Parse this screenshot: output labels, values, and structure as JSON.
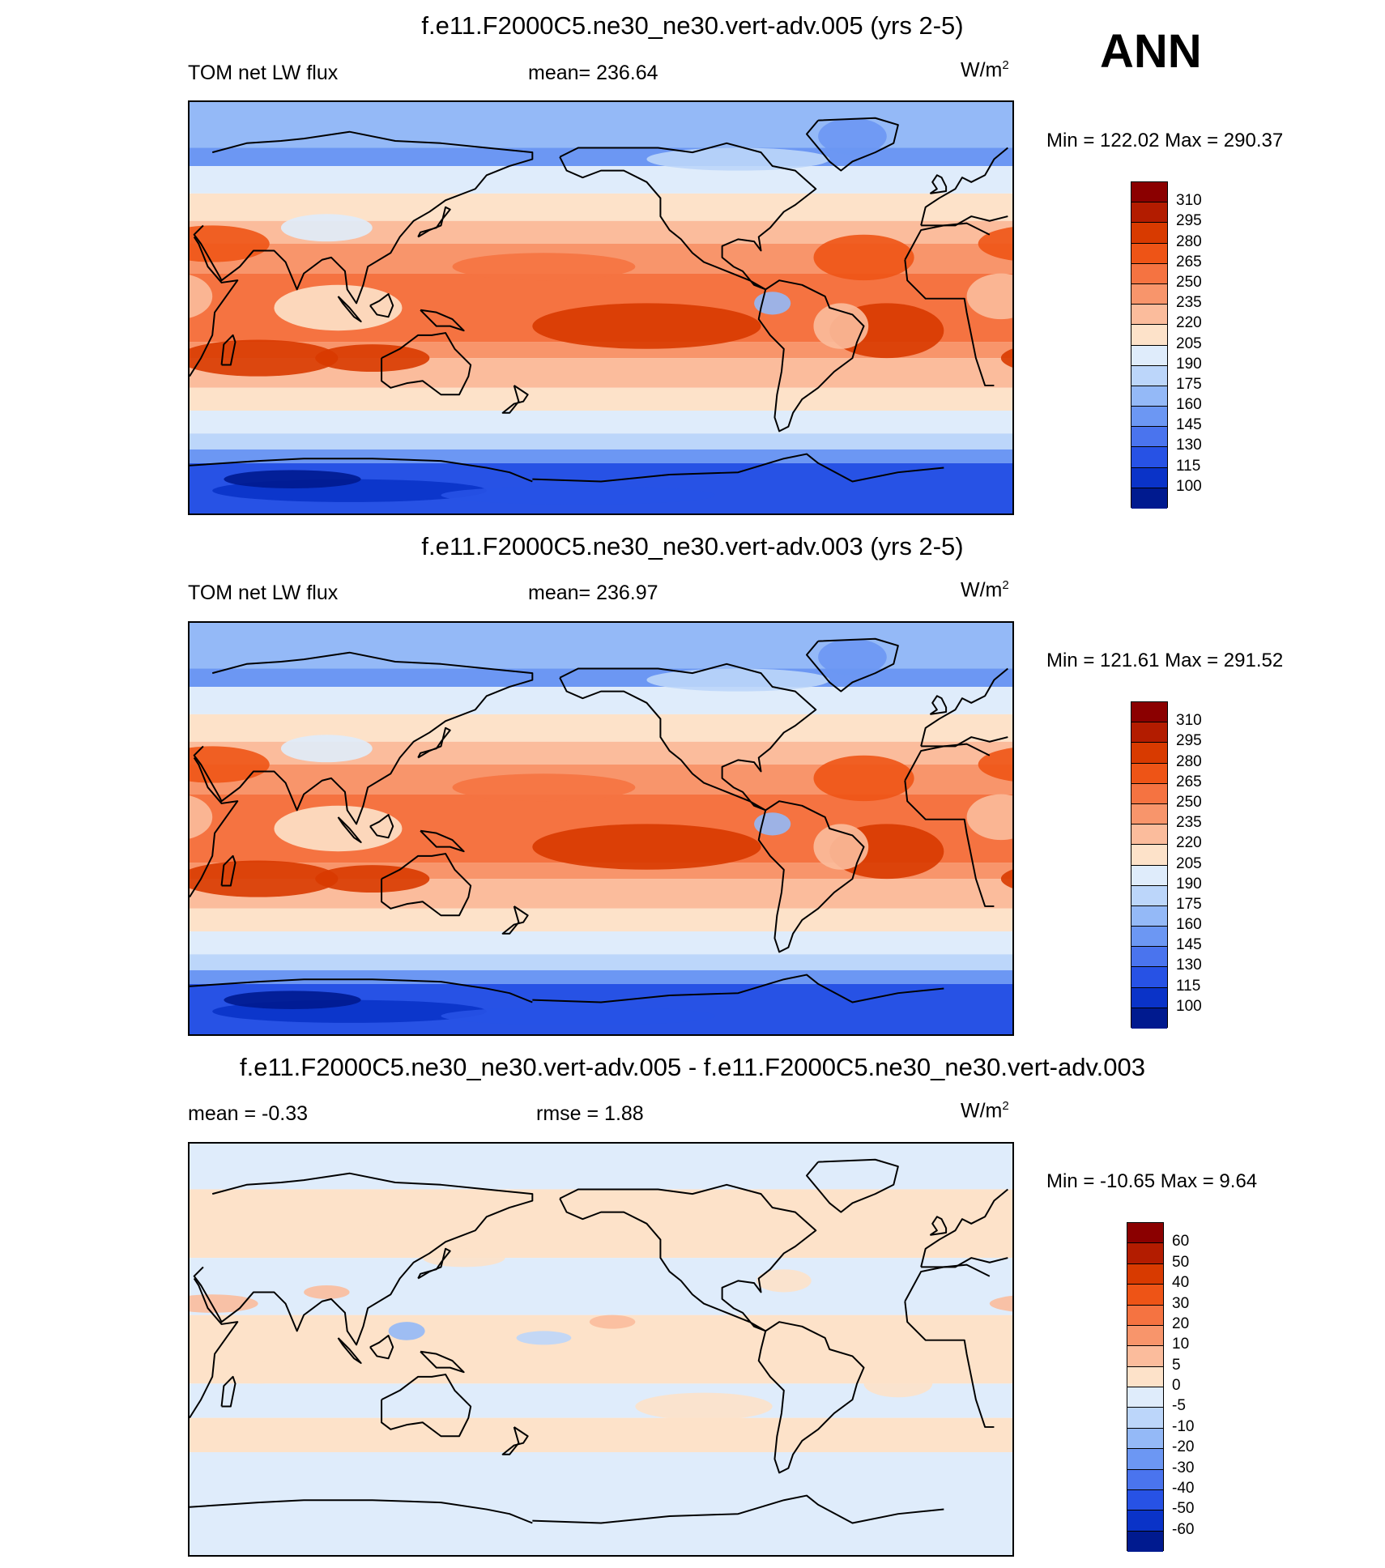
{
  "season": "ANN",
  "panels": [
    {
      "title": "f.e11.F2000C5.ne30_ne30.vert-adv.005 (yrs 2-5)",
      "left": "TOM net LW flux",
      "center": "mean= 236.64",
      "units": "W/m",
      "units_exp": "2",
      "minmax": "Min = 122.02 Max = 290.37",
      "scale": "abs"
    },
    {
      "title": "f.e11.F2000C5.ne30_ne30.vert-adv.003 (yrs 2-5)",
      "left": "TOM net LW flux",
      "center": "mean= 236.97",
      "units": "W/m",
      "units_exp": "2",
      "minmax": "Min = 121.61 Max = 291.52",
      "scale": "abs"
    },
    {
      "title": "f.e11.F2000C5.ne30_ne30.vert-adv.005 - f.e11.F2000C5.ne30_ne30.vert-adv.003",
      "left": "mean =  -0.33",
      "center": "rmse =   1.88",
      "units": "W/m",
      "units_exp": "2",
      "minmax": "Min = -10.65 Max =   9.64",
      "scale": "diff"
    }
  ],
  "colorbars": {
    "abs": {
      "labels": [
        "310",
        "295",
        "280",
        "265",
        "250",
        "235",
        "220",
        "205",
        "190",
        "175",
        "160",
        "145",
        "130",
        "115",
        "100"
      ],
      "colors": [
        "#8b0000",
        "#b31c00",
        "#d83a00",
        "#ee5416",
        "#f57341",
        "#f8956b",
        "#fbbc9c",
        "#fde2c9",
        "#dfecfb",
        "#bcd6fa",
        "#94b9f7",
        "#6c97f3",
        "#4a74ee",
        "#2752e5",
        "#0a33c8",
        "#001a8f"
      ]
    },
    "diff": {
      "labels": [
        "60",
        "50",
        "40",
        "30",
        "20",
        "10",
        "5",
        "0",
        "-5",
        "-10",
        "-20",
        "-30",
        "-40",
        "-50",
        "-60"
      ],
      "colors": [
        "#8b0000",
        "#b31c00",
        "#d83a00",
        "#ee5416",
        "#f57341",
        "#f8956b",
        "#fbbc9c",
        "#fde2c9",
        "#dfecfb",
        "#bcd6fa",
        "#94b9f7",
        "#6c97f3",
        "#4a74ee",
        "#2752e5",
        "#0a33c8",
        "#001a8f"
      ]
    }
  }
}
